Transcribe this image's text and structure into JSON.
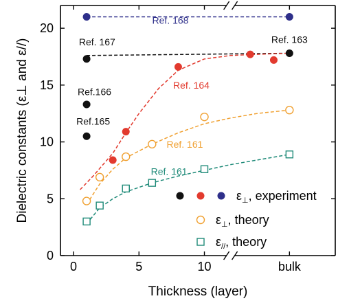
{
  "chart_data": {
    "type": "scatter",
    "xlabel": "Thickness (layer)",
    "ylabel": "Dielectric constants (ε⊥ and ε//)",
    "xlim": [
      -1,
      20
    ],
    "ylim": [
      0,
      22
    ],
    "x_ticks": [
      {
        "value": 0,
        "label": "0"
      },
      {
        "value": 5,
        "label": "5"
      },
      {
        "value": 10,
        "label": "10"
      },
      {
        "value": 16.5,
        "label": "bulk"
      }
    ],
    "y_ticks": [
      0,
      5,
      10,
      15,
      20
    ],
    "axis_break": {
      "x": 12.0
    },
    "colors": {
      "black": "#111111",
      "red": "#e23a2e",
      "navy": "#2e2f8a",
      "orange": "#f0a030",
      "teal": "#1e8a78"
    },
    "series": [
      {
        "key": "exp-black",
        "style": "filled",
        "color": "#111111",
        "points": [
          [
            1,
            17.3
          ],
          [
            1,
            13.3
          ],
          [
            1,
            10.5
          ],
          [
            16.5,
            17.8
          ]
        ]
      },
      {
        "key": "exp-red",
        "style": "filled",
        "color": "#e23a2e",
        "points": [
          [
            3,
            8.4
          ],
          [
            4,
            10.9
          ],
          [
            8,
            16.6
          ],
          [
            13.5,
            17.7
          ],
          [
            15.3,
            17.2
          ]
        ]
      },
      {
        "key": "exp-navy",
        "style": "filled",
        "color": "#2e2f8a",
        "points": [
          [
            1,
            21.0
          ],
          [
            16.5,
            21.0
          ]
        ]
      },
      {
        "key": "theory-perp",
        "style": "open-circle",
        "color": "#f0a030",
        "points": [
          [
            1,
            4.8
          ],
          [
            2,
            6.9
          ],
          [
            4,
            8.7
          ],
          [
            6,
            9.8
          ],
          [
            10,
            12.2
          ],
          [
            16.5,
            12.8
          ]
        ]
      },
      {
        "key": "theory-par",
        "style": "open-square",
        "color": "#1e8a78",
        "points": [
          [
            1,
            3.0
          ],
          [
            2,
            4.4
          ],
          [
            4,
            5.9
          ],
          [
            6,
            6.4
          ],
          [
            10,
            7.6
          ],
          [
            16.5,
            8.9
          ]
        ]
      }
    ],
    "fit_lines": [
      {
        "key": "ref168-line",
        "color": "#2e2f8a",
        "points": [
          [
            1,
            21.0
          ],
          [
            16.5,
            21.0
          ]
        ]
      },
      {
        "key": "ref167-line",
        "color": "#111111",
        "points": [
          [
            1,
            17.6
          ],
          [
            16.5,
            17.8
          ]
        ]
      },
      {
        "key": "red-fit",
        "color": "#e23a2e",
        "points": [
          [
            0.5,
            5.8
          ],
          [
            1.5,
            7.0
          ],
          [
            3,
            9.0
          ],
          [
            4,
            10.8
          ],
          [
            5,
            12.5
          ],
          [
            6.5,
            14.7
          ],
          [
            8,
            16.3
          ],
          [
            10,
            17.3
          ],
          [
            12,
            17.6
          ],
          [
            14,
            17.7
          ],
          [
            16.5,
            17.8
          ]
        ]
      },
      {
        "key": "orange-fit",
        "color": "#f0a030",
        "points": [
          [
            1,
            4.5
          ],
          [
            2,
            6.3
          ],
          [
            3,
            7.6
          ],
          [
            4,
            8.6
          ],
          [
            6,
            9.8
          ],
          [
            8,
            10.8
          ],
          [
            10,
            11.6
          ],
          [
            12,
            12.1
          ],
          [
            14,
            12.5
          ],
          [
            16.5,
            12.8
          ]
        ]
      },
      {
        "key": "teal-fit",
        "color": "#1e8a78",
        "points": [
          [
            1,
            2.8
          ],
          [
            2,
            4.2
          ],
          [
            3,
            5.0
          ],
          [
            4,
            5.6
          ],
          [
            6,
            6.4
          ],
          [
            8,
            7.0
          ],
          [
            10,
            7.5
          ],
          [
            12,
            8.0
          ],
          [
            14,
            8.4
          ],
          [
            16.5,
            8.9
          ]
        ]
      }
    ],
    "annotations": [
      {
        "key": "ref168",
        "text": "Ref. 168",
        "x": 7.4,
        "y": 20.4,
        "color": "#2e2f8a"
      },
      {
        "key": "ref167",
        "text": "Ref. 167",
        "x": 1.8,
        "y": 18.5,
        "color": "#111111"
      },
      {
        "key": "ref163",
        "text": "Ref. 163",
        "x": 16.5,
        "y": 18.7,
        "color": "#111111"
      },
      {
        "key": "ref164",
        "text": "Ref. 164",
        "x": 9.0,
        "y": 14.7,
        "color": "#e23a2e"
      },
      {
        "key": "ref166",
        "text": "Ref.166",
        "x": 1.6,
        "y": 14.1,
        "color": "#111111"
      },
      {
        "key": "ref165",
        "text": "Ref.165",
        "x": 1.5,
        "y": 11.5,
        "color": "#111111"
      },
      {
        "key": "ref161a",
        "text": "Ref. 161",
        "x": 8.5,
        "y": 9.5,
        "color": "#f0a030"
      },
      {
        "key": "ref161b",
        "text": "Ref. 161",
        "x": 7.3,
        "y": 7.1,
        "color": "#1e8a78"
      }
    ],
    "legend": {
      "position": "bottom-right",
      "entries": [
        {
          "key": "experiment",
          "symbols": [
            "filled-black",
            "filled-red",
            "filled-navy"
          ],
          "symbol": "ε",
          "sub": "⊥",
          "text": ", experiment"
        },
        {
          "key": "theory-perp",
          "symbols": [
            "open-circle"
          ],
          "symbol": "ε",
          "sub": "⊥",
          "text": ", theory"
        },
        {
          "key": "theory-par",
          "symbols": [
            "open-square"
          ],
          "symbol": "ε",
          "sub": "//",
          "text": ", theory"
        }
      ]
    }
  }
}
